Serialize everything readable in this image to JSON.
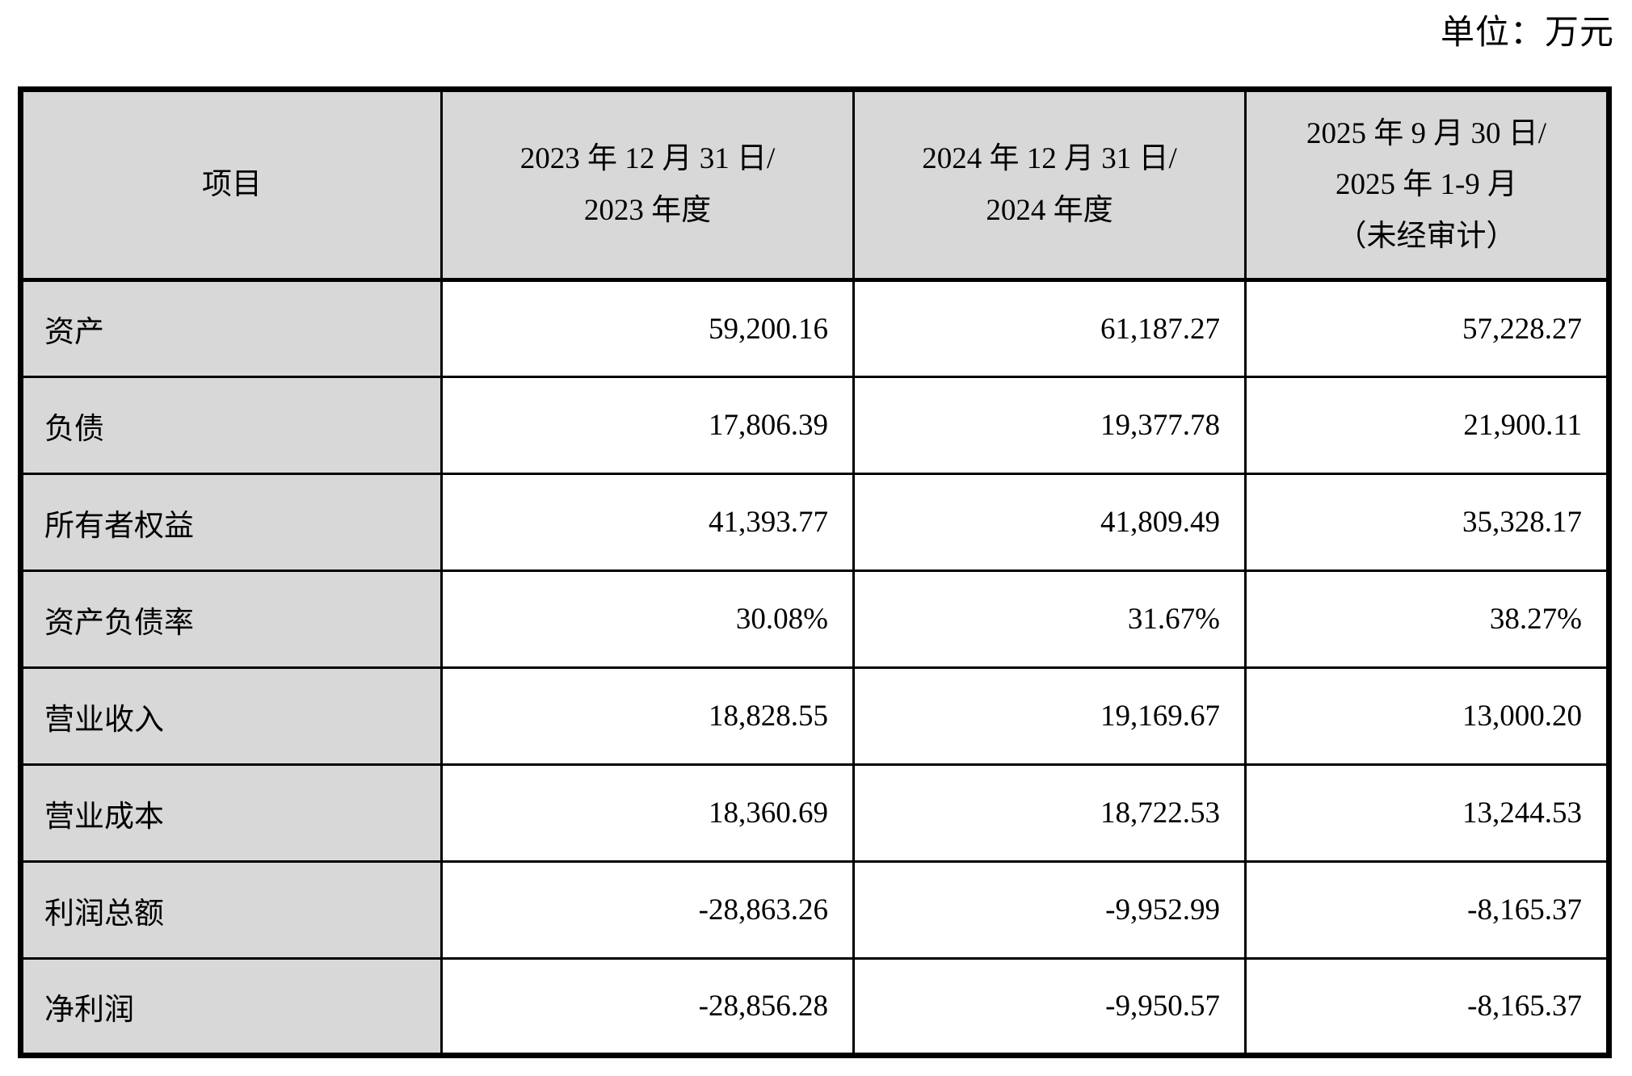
{
  "unit_label": "单位：万元",
  "table": {
    "header": {
      "item": "项目",
      "col_2023": [
        "2023 年 12 月 31 日/",
        "2023 年度"
      ],
      "col_2024": [
        "2024 年 12 月 31 日/",
        "2024 年度"
      ],
      "col_2025": [
        "2025 年 9 月 30 日/",
        "2025 年 1-9 月",
        "（未经审计）"
      ]
    },
    "rows": [
      {
        "item": "资产",
        "v2023": "59,200.16",
        "v2024": "61,187.27",
        "v2025": "57,228.27"
      },
      {
        "item": "负债",
        "v2023": "17,806.39",
        "v2024": "19,377.78",
        "v2025": "21,900.11"
      },
      {
        "item": "所有者权益",
        "v2023": "41,393.77",
        "v2024": "41,809.49",
        "v2025": "35,328.17"
      },
      {
        "item": "资产负债率",
        "v2023": "30.08%",
        "v2024": "31.67%",
        "v2025": "38.27%"
      },
      {
        "item": "营业收入",
        "v2023": "18,828.55",
        "v2024": "19,169.67",
        "v2025": "13,000.20"
      },
      {
        "item": "营业成本",
        "v2023": "18,360.69",
        "v2024": "18,722.53",
        "v2025": "13,244.53"
      },
      {
        "item": "利润总额",
        "v2023": "-28,863.26",
        "v2024": "-9,952.99",
        "v2025": "-8,165.37"
      },
      {
        "item": "净利润",
        "v2023": "-28,856.28",
        "v2024": "-9,950.57",
        "v2025": "-8,165.37"
      }
    ]
  }
}
